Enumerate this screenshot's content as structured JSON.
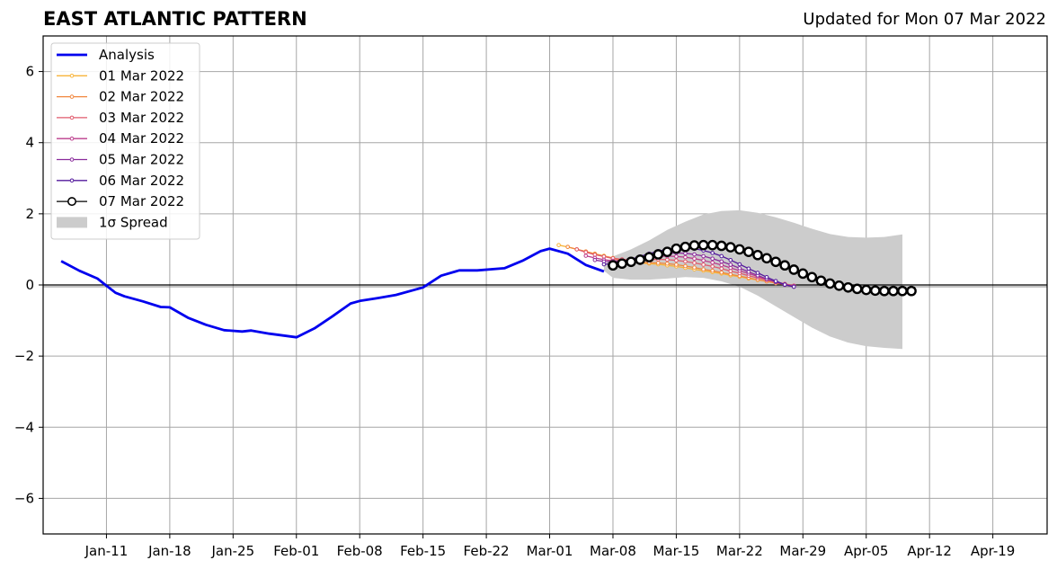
{
  "header": {
    "title": "EAST ATLANTIC PATTERN",
    "updated": "Updated for Mon 07 Mar 2022"
  },
  "chart_data": {
    "type": "line",
    "title": "EAST ATLANTIC PATTERN",
    "subtitle": "Updated for Mon 07 Mar 2022",
    "xlabel": "",
    "ylabel": "",
    "xlim": [
      "2022-01-04",
      "2022-04-25"
    ],
    "ylim": [
      -7,
      7
    ],
    "x_ticks": [
      "Jan-11",
      "Jan-18",
      "Jan-25",
      "Feb-01",
      "Feb-08",
      "Feb-15",
      "Feb-22",
      "Mar-01",
      "Mar-08",
      "Mar-15",
      "Mar-22",
      "Mar-29",
      "Apr-05",
      "Apr-12",
      "Apr-19"
    ],
    "x_tick_dates": [
      "2022-01-11",
      "2022-01-18",
      "2022-01-25",
      "2022-02-01",
      "2022-02-08",
      "2022-02-15",
      "2022-02-22",
      "2022-03-01",
      "2022-03-08",
      "2022-03-15",
      "2022-03-22",
      "2022-03-29",
      "2022-04-05",
      "2022-04-12",
      "2022-04-19"
    ],
    "y_ticks": [
      6,
      4,
      2,
      0,
      -2,
      -4,
      -6
    ],
    "y_tick_labels": [
      "6",
      "4",
      "2",
      "0",
      "−2",
      "−4",
      "−6"
    ],
    "grid": true,
    "zero_line": true,
    "legend_position": "upper-left",
    "legend": [
      "Analysis",
      "01 Mar 2022",
      "02 Mar 2022",
      "03 Mar 2022",
      "04 Mar 2022",
      "05 Mar 2022",
      "06 Mar 2022",
      "07 Mar 2022",
      "1σ Spread"
    ],
    "analysis": {
      "name": "Analysis",
      "color": "#0000ee",
      "x": [
        "2022-01-06",
        "2022-01-08",
        "2022-01-10",
        "2022-01-11",
        "2022-01-12",
        "2022-01-13",
        "2022-01-15",
        "2022-01-17",
        "2022-01-18",
        "2022-01-20",
        "2022-01-22",
        "2022-01-24",
        "2022-01-26",
        "2022-01-27",
        "2022-01-29",
        "2022-02-01",
        "2022-02-03",
        "2022-02-05",
        "2022-02-07",
        "2022-02-08",
        "2022-02-10",
        "2022-02-12",
        "2022-02-15",
        "2022-02-17",
        "2022-02-19",
        "2022-02-21",
        "2022-02-24",
        "2022-02-26",
        "2022-02-28",
        "2022-03-01",
        "2022-03-03",
        "2022-03-05",
        "2022-03-07"
      ],
      "values": [
        0.67,
        0.4,
        0.18,
        -0.02,
        -0.22,
        -0.32,
        -0.46,
        -0.62,
        -0.63,
        -0.92,
        -1.12,
        -1.27,
        -1.31,
        -1.28,
        -1.37,
        -1.47,
        -1.22,
        -0.88,
        -0.52,
        -0.45,
        -0.37,
        -0.28,
        -0.07,
        0.26,
        0.41,
        0.41,
        0.47,
        0.68,
        0.95,
        1.02,
        0.88,
        0.56,
        0.38
      ]
    },
    "spread": {
      "name": "1σ Spread",
      "color": "#cccccc",
      "x": [
        "2022-03-07",
        "2022-03-08",
        "2022-03-10",
        "2022-03-12",
        "2022-03-14",
        "2022-03-16",
        "2022-03-18",
        "2022-03-20",
        "2022-03-22",
        "2022-03-24",
        "2022-03-26",
        "2022-03-28",
        "2022-03-30",
        "2022-04-01",
        "2022-04-03",
        "2022-04-05",
        "2022-04-07",
        "2022-04-09"
      ],
      "upper": [
        0.55,
        0.8,
        1.0,
        1.25,
        1.55,
        1.78,
        1.98,
        2.08,
        2.1,
        2.03,
        1.9,
        1.75,
        1.58,
        1.43,
        1.35,
        1.33,
        1.35,
        1.42
      ],
      "lower": [
        0.4,
        0.2,
        0.15,
        0.15,
        0.18,
        0.22,
        0.2,
        0.1,
        -0.05,
        -0.3,
        -0.6,
        -0.9,
        -1.2,
        -1.45,
        -1.62,
        -1.72,
        -1.77,
        -1.8
      ]
    },
    "series": [
      {
        "name": "01 Mar 2022",
        "color": "#f8b43a",
        "start": "2022-03-02",
        "values": [
          1.12,
          1.07,
          1.0,
          0.94,
          0.88,
          0.82,
          0.76,
          0.7,
          0.66,
          0.62,
          0.6,
          0.58,
          0.55,
          0.52,
          0.48,
          0.44,
          0.4,
          0.36,
          0.32,
          0.27,
          0.23,
          0.18,
          0.14,
          0.1,
          0.06,
          0.02,
          -0.02
        ]
      },
      {
        "name": "02 Mar 2022",
        "color": "#f1873e",
        "start": "2022-03-03",
        "values": [
          1.07,
          1.0,
          0.94,
          0.87,
          0.8,
          0.74,
          0.69,
          0.66,
          0.64,
          0.63,
          0.62,
          0.6,
          0.57,
          0.53,
          0.49,
          0.44,
          0.4,
          0.35,
          0.3,
          0.25,
          0.2,
          0.15,
          0.1,
          0.05,
          0.01,
          -0.03
        ]
      },
      {
        "name": "03 Mar 2022",
        "color": "#e05a6c",
        "start": "2022-03-04",
        "values": [
          1.0,
          0.92,
          0.85,
          0.8,
          0.75,
          0.72,
          0.7,
          0.7,
          0.71,
          0.72,
          0.71,
          0.69,
          0.66,
          0.62,
          0.57,
          0.52,
          0.46,
          0.39,
          0.33,
          0.26,
          0.2,
          0.14,
          0.08,
          0.03,
          -0.02
        ]
      },
      {
        "name": "04 Mar 2022",
        "color": "#bb3c8c",
        "start": "2022-03-05",
        "values": [
          0.82,
          0.76,
          0.71,
          0.68,
          0.68,
          0.7,
          0.74,
          0.77,
          0.8,
          0.81,
          0.8,
          0.78,
          0.74,
          0.69,
          0.63,
          0.56,
          0.48,
          0.4,
          0.32,
          0.24,
          0.16,
          0.09,
          0.02,
          -0.03
        ]
      },
      {
        "name": "05 Mar 2022",
        "color": "#8a2b9c",
        "start": "2022-03-06",
        "values": [
          0.7,
          0.66,
          0.65,
          0.67,
          0.71,
          0.77,
          0.82,
          0.86,
          0.89,
          0.9,
          0.89,
          0.86,
          0.81,
          0.74,
          0.66,
          0.57,
          0.47,
          0.37,
          0.27,
          0.17,
          0.08,
          0.0,
          -0.05
        ]
      },
      {
        "name": "06 Mar 2022",
        "color": "#53199c",
        "start": "2022-03-07",
        "values": [
          0.58,
          0.6,
          0.65,
          0.72,
          0.8,
          0.88,
          0.95,
          1.0,
          1.03,
          1.04,
          1.02,
          0.97,
          0.9,
          0.81,
          0.7,
          0.58,
          0.46,
          0.34,
          0.22,
          0.11,
          0.01,
          -0.05
        ]
      },
      {
        "name": "07 Mar 2022",
        "color": "#000000",
        "start": "2022-03-08",
        "values": [
          0.55,
          0.6,
          0.65,
          0.71,
          0.78,
          0.86,
          0.93,
          1.02,
          1.07,
          1.11,
          1.12,
          1.12,
          1.1,
          1.06,
          1.0,
          0.93,
          0.84,
          0.75,
          0.65,
          0.55,
          0.43,
          0.32,
          0.22,
          0.12,
          0.04,
          -0.02,
          -0.07,
          -0.11,
          -0.14,
          -0.16,
          -0.17,
          -0.17,
          -0.17,
          -0.17
        ]
      }
    ]
  }
}
